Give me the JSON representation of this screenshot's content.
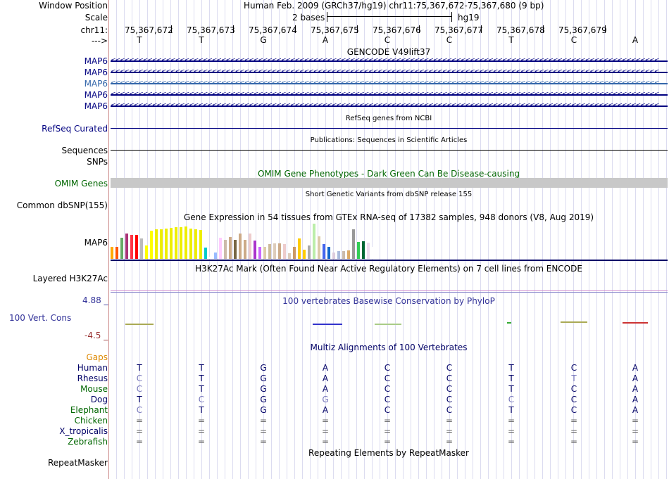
{
  "header": {
    "window_label": "Window Position",
    "window_text": "Human Feb. 2009 (GRCh37/hg19)   chr11:75,367,672-75,367,680 (9 bp)",
    "scale_label": "Scale",
    "scale_text": "2 bases",
    "scale_assembly": "hg19",
    "chrom_label": "chr11:",
    "strand_label": "--->",
    "positions": [
      "75,367,672",
      "75,367,673",
      "75,367,674",
      "75,367,675",
      "75,367,676",
      "75,367,677",
      "75,367,678",
      "75,367,679"
    ]
  },
  "sequence": [
    "T",
    "T",
    "G",
    "A",
    "C",
    "C",
    "T",
    "C",
    "A"
  ],
  "gencode": {
    "title": "GENCODE V49lift37",
    "genes": [
      "MAP6",
      "MAP6",
      "MAP6",
      "MAP6",
      "MAP6"
    ],
    "arrows": "<<<<<<<<<<<<<<<<<<<<<<<<<<<<<<<<<<<<<<<<<<<<<<<<<<<<<<<<<<<<<<<<<<<<<<<<<<<<<<<<<<<<<<<<<<<<<<<<<<<<<<<<<<<<<<<<<<<<<<<"
  },
  "refseq": {
    "title": "RefSeq genes from NCBI",
    "label": "RefSeq Curated"
  },
  "publications": {
    "title": "Publications: Sequences in Scientific Articles",
    "label": "Sequences"
  },
  "snps_label": "SNPs",
  "omim": {
    "title": "OMIM Gene Phenotypes - Dark Green Can Be Disease-causing",
    "label": "OMIM Genes"
  },
  "dbsnp": {
    "title": "Short Genetic Variants from dbSNP release 155",
    "label": "Common dbSNP(155)"
  },
  "gtex": {
    "title": "Gene Expression in 54 tissues from GTEx RNA-seq of 17382 samples, 948 donors (V8, Aug 2019)",
    "label": "MAP6",
    "values": [
      0.38,
      0.38,
      0.65,
      0.78,
      0.74,
      0.74,
      0.64,
      0.42,
      0.86,
      0.92,
      0.92,
      0.94,
      0.96,
      0.98,
      0.98,
      1.0,
      0.94,
      0.92,
      0.9,
      0.35,
      0.07,
      0.2,
      0.65,
      0.58,
      0.68,
      0.58,
      0.78,
      0.58,
      0.78,
      0.56,
      0.38,
      0.38,
      0.46,
      0.48,
      0.48,
      0.46,
      0.18,
      0.38,
      0.62,
      0.28,
      0.42,
      1.08,
      0.7,
      0.45,
      0.36,
      0.2,
      0.24,
      0.24,
      0.26,
      0.92,
      0.52,
      0.54,
      0.5,
      0.36
    ],
    "colors": [
      "#ffaa00",
      "#ff5500",
      "#66aa66",
      "#aa3377",
      "#ff3344",
      "#ff0000",
      "#bbbbbb",
      "#ffff00",
      "#ffff00",
      "#eeee00",
      "#eeee00",
      "#eeee00",
      "#eeee00",
      "#eeee00",
      "#eeee00",
      "#eeee00",
      "#eeee00",
      "#eeee00",
      "#eeee00",
      "#00cccc",
      "#ffffff",
      "#99bbff",
      "#ffccff",
      "#ccbbaa",
      "#ccaa88",
      "#776644",
      "#ccaa88",
      "#ccaa88",
      "#eecccc",
      "#aa33cc",
      "#cc66ff",
      "#ddccaa",
      "#ccbb99",
      "#ddccbb",
      "#ccaa88",
      "#eecccc",
      "#ddccbb",
      "#cc9966",
      "#ffcc00",
      "#ffcc00",
      "#aaaaaa",
      "#bbeeaa",
      "#ddccaa",
      "#4466ee",
      "#1166cc",
      "#ddccdd",
      "#aabbdd",
      "#ccbbaa",
      "#ddaa66",
      "#999999",
      "#33cc55",
      "#006633",
      "#eeddee",
      "#ffffff"
    ]
  },
  "h3k27ac": {
    "title": "H3K27Ac Mark (Often Found Near Active Regulatory Elements) on 7 cell lines from ENCODE",
    "label": "Layered H3K27Ac"
  },
  "phylop": {
    "title": "100 vertebrates Basewise Conservation by PhyloP",
    "label": "100 Vert. Cons",
    "ymax": "4.88 _",
    "ymin": "-4.5 _"
  },
  "multiz": {
    "title": "Multiz Alignments of 100 Vertebrates",
    "gaps_label": "Gaps",
    "species": [
      {
        "name": "Human",
        "bases": [
          "T",
          "T",
          "G",
          "A",
          "C",
          "C",
          "T",
          "C",
          "A"
        ],
        "color": "#000066"
      },
      {
        "name": "Rhesus",
        "bases": [
          "C",
          "T",
          "G",
          "A",
          "C",
          "C",
          "T",
          "T",
          "A"
        ],
        "color": "#000066"
      },
      {
        "name": "Mouse",
        "bases": [
          "C",
          "T",
          "G",
          "A",
          "C",
          "C",
          "T",
          "C",
          "A"
        ],
        "color": "#006600"
      },
      {
        "name": "Dog",
        "bases": [
          "T",
          "C",
          "G",
          "G",
          "C",
          "C",
          "C",
          "C",
          "A"
        ],
        "color": "#000066"
      },
      {
        "name": "Elephant",
        "bases": [
          "C",
          "T",
          "G",
          "A",
          "C",
          "C",
          "T",
          "C",
          "A"
        ],
        "color": "#006600"
      },
      {
        "name": "Chicken",
        "bases": [
          "=",
          "=",
          "=",
          "=",
          "=",
          "=",
          "=",
          "=",
          "="
        ],
        "color": "#006600"
      },
      {
        "name": "X_tropicalis",
        "bases": [
          "=",
          "=",
          "=",
          "=",
          "=",
          "=",
          "=",
          "=",
          "="
        ],
        "color": "#000066"
      },
      {
        "name": "Zebrafish",
        "bases": [
          "=",
          "=",
          "=",
          "=",
          "=",
          "=",
          "=",
          "=",
          "="
        ],
        "color": "#006600"
      }
    ]
  },
  "repeatmasker": {
    "title": "Repeating Elements by RepeatMasker",
    "label": "RepeatMasker"
  },
  "colors": {
    "gene_blue": "#000080",
    "gencode_light": "#3366aa",
    "omim_green": "#006600",
    "phylop_blue": "#333399",
    "gaps_orange": "#dd8800",
    "omim_bar": "#c8c8c8"
  }
}
